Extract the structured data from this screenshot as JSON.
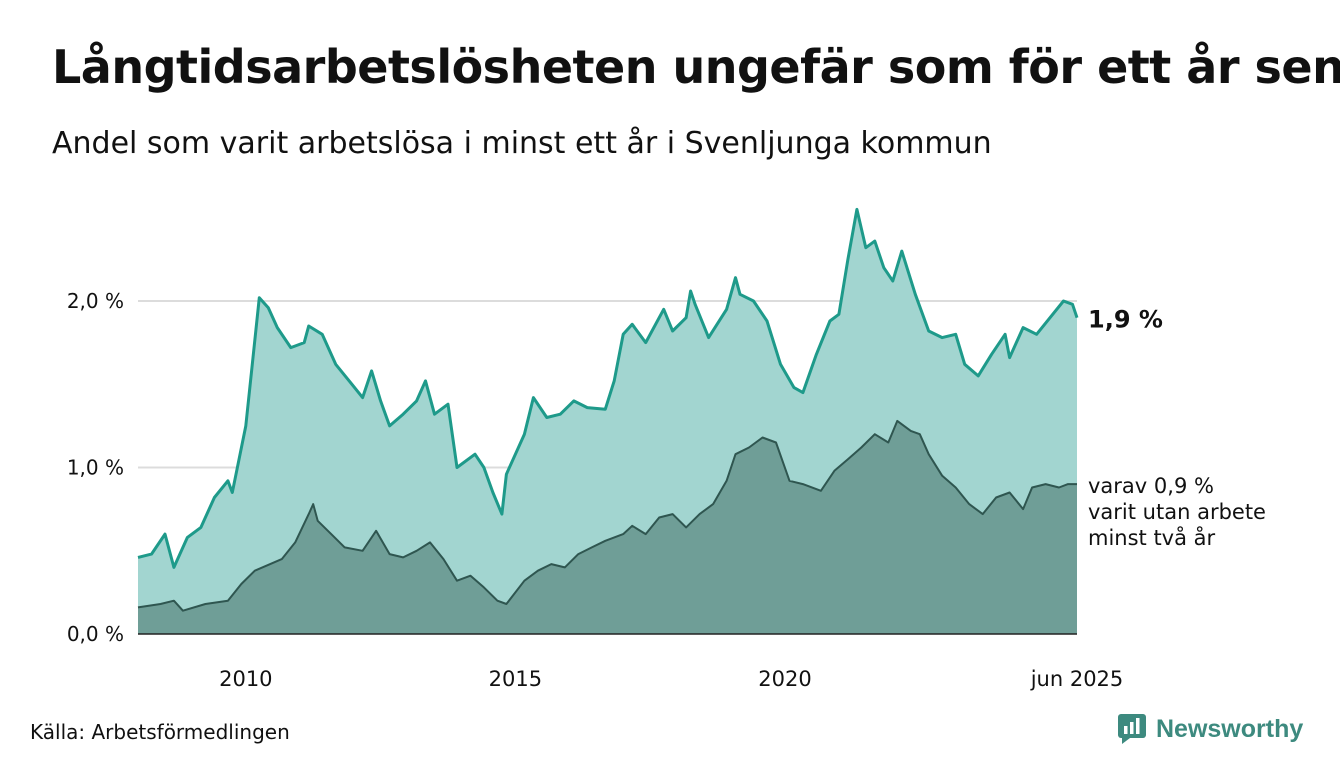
{
  "title": "Långtidsarbetslösheten ungefär som för ett år sen",
  "subtitle": "Andel som varit arbetslösa i minst ett år i Svenljunga kommun",
  "source": "Källa: Arbetsförmedlingen",
  "brand": {
    "name": "Newsworthy",
    "icon": "newsworthy-logo-icon"
  },
  "colors": {
    "total_line": "#1e9a8a",
    "total_fill": "#a2d5d0",
    "sub_fill": "#6f9e97",
    "sub_line": "#2f5650",
    "grid": "#dcdcdc"
  },
  "chart_data": {
    "type": "area",
    "title": "Långtidsarbetslösheten ungefär som för ett år sen",
    "subtitle": "Andel som varit arbetslösa i minst ett år i Svenljunga kommun",
    "x_start": "2008-01",
    "x_end": "2025-06",
    "x_ticks": [
      {
        "date": "2010-01",
        "label": "2010"
      },
      {
        "date": "2015-01",
        "label": "2015"
      },
      {
        "date": "2020-01",
        "label": "2020"
      },
      {
        "date": "2025-06",
        "label": "jun 2025"
      }
    ],
    "y_ticks": [
      {
        "value": 0,
        "label": "0,0 %"
      },
      {
        "value": 1,
        "label": "1,0 %"
      },
      {
        "value": 2,
        "label": "2,0 %"
      }
    ],
    "ylim": [
      0,
      2.6
    ],
    "grid": true,
    "series": [
      {
        "key": "total",
        "end_label": "1,9 %",
        "points": [
          [
            "2008-01",
            0.46
          ],
          [
            "2008-04",
            0.48
          ],
          [
            "2008-07",
            0.6
          ],
          [
            "2008-09",
            0.4
          ],
          [
            "2008-12",
            0.58
          ],
          [
            "2009-03",
            0.64
          ],
          [
            "2009-06",
            0.82
          ],
          [
            "2009-09",
            0.92
          ],
          [
            "2009-10",
            0.85
          ],
          [
            "2010-01",
            1.25
          ],
          [
            "2010-04",
            2.02
          ],
          [
            "2010-06",
            1.96
          ],
          [
            "2010-08",
            1.84
          ],
          [
            "2010-11",
            1.72
          ],
          [
            "2011-02",
            1.75
          ],
          [
            "2011-03",
            1.85
          ],
          [
            "2011-06",
            1.8
          ],
          [
            "2011-09",
            1.62
          ],
          [
            "2011-12",
            1.52
          ],
          [
            "2012-03",
            1.42
          ],
          [
            "2012-05",
            1.58
          ],
          [
            "2012-07",
            1.4
          ],
          [
            "2012-09",
            1.25
          ],
          [
            "2012-12",
            1.32
          ],
          [
            "2013-03",
            1.4
          ],
          [
            "2013-05",
            1.52
          ],
          [
            "2013-07",
            1.32
          ],
          [
            "2013-10",
            1.38
          ],
          [
            "2013-12",
            1.0
          ],
          [
            "2014-04",
            1.08
          ],
          [
            "2014-06",
            1.0
          ],
          [
            "2014-08",
            0.85
          ],
          [
            "2014-10",
            0.72
          ],
          [
            "2014-11",
            0.96
          ],
          [
            "2015-03",
            1.2
          ],
          [
            "2015-05",
            1.42
          ],
          [
            "2015-08",
            1.3
          ],
          [
            "2015-11",
            1.32
          ],
          [
            "2016-02",
            1.4
          ],
          [
            "2016-05",
            1.36
          ],
          [
            "2016-09",
            1.35
          ],
          [
            "2016-11",
            1.52
          ],
          [
            "2017-01",
            1.8
          ],
          [
            "2017-03",
            1.86
          ],
          [
            "2017-06",
            1.75
          ],
          [
            "2017-10",
            1.95
          ],
          [
            "2017-12",
            1.82
          ],
          [
            "2018-03",
            1.9
          ],
          [
            "2018-04",
            2.06
          ],
          [
            "2018-05",
            1.98
          ],
          [
            "2018-08",
            1.78
          ],
          [
            "2018-12",
            1.95
          ],
          [
            "2019-02",
            2.14
          ],
          [
            "2019-03",
            2.04
          ],
          [
            "2019-06",
            2.0
          ],
          [
            "2019-09",
            1.88
          ],
          [
            "2019-12",
            1.62
          ],
          [
            "2020-03",
            1.48
          ],
          [
            "2020-05",
            1.45
          ],
          [
            "2020-08",
            1.68
          ],
          [
            "2020-11",
            1.88
          ],
          [
            "2021-01",
            1.92
          ],
          [
            "2021-03",
            2.25
          ],
          [
            "2021-05",
            2.55
          ],
          [
            "2021-07",
            2.32
          ],
          [
            "2021-09",
            2.36
          ],
          [
            "2021-11",
            2.2
          ],
          [
            "2022-01",
            2.12
          ],
          [
            "2022-03",
            2.3
          ],
          [
            "2022-06",
            2.04
          ],
          [
            "2022-09",
            1.82
          ],
          [
            "2022-12",
            1.78
          ],
          [
            "2023-03",
            1.8
          ],
          [
            "2023-05",
            1.62
          ],
          [
            "2023-08",
            1.55
          ],
          [
            "2023-11",
            1.68
          ],
          [
            "2024-02",
            1.8
          ],
          [
            "2024-03",
            1.66
          ],
          [
            "2024-06",
            1.84
          ],
          [
            "2024-09",
            1.8
          ],
          [
            "2024-12",
            1.9
          ],
          [
            "2025-03",
            2.0
          ],
          [
            "2025-05",
            1.98
          ],
          [
            "2025-06",
            1.9
          ]
        ]
      },
      {
        "key": "sub",
        "label_lines": [
          "varav 0,9 %",
          "varit utan arbete",
          "minst två år"
        ],
        "points": [
          [
            "2008-01",
            0.16
          ],
          [
            "2008-06",
            0.18
          ],
          [
            "2008-09",
            0.2
          ],
          [
            "2008-11",
            0.14
          ],
          [
            "2009-04",
            0.18
          ],
          [
            "2009-09",
            0.2
          ],
          [
            "2009-12",
            0.3
          ],
          [
            "2010-03",
            0.38
          ],
          [
            "2010-09",
            0.45
          ],
          [
            "2010-12",
            0.55
          ],
          [
            "2011-03",
            0.72
          ],
          [
            "2011-04",
            0.78
          ],
          [
            "2011-05",
            0.68
          ],
          [
            "2011-08",
            0.6
          ],
          [
            "2011-11",
            0.52
          ],
          [
            "2012-03",
            0.5
          ],
          [
            "2012-06",
            0.62
          ],
          [
            "2012-09",
            0.48
          ],
          [
            "2012-12",
            0.46
          ],
          [
            "2013-03",
            0.5
          ],
          [
            "2013-06",
            0.55
          ],
          [
            "2013-09",
            0.45
          ],
          [
            "2013-12",
            0.32
          ],
          [
            "2014-03",
            0.35
          ],
          [
            "2014-06",
            0.28
          ],
          [
            "2014-09",
            0.2
          ],
          [
            "2014-11",
            0.18
          ],
          [
            "2015-03",
            0.32
          ],
          [
            "2015-06",
            0.38
          ],
          [
            "2015-09",
            0.42
          ],
          [
            "2015-12",
            0.4
          ],
          [
            "2016-03",
            0.48
          ],
          [
            "2016-06",
            0.52
          ],
          [
            "2016-09",
            0.56
          ],
          [
            "2017-01",
            0.6
          ],
          [
            "2017-03",
            0.65
          ],
          [
            "2017-06",
            0.6
          ],
          [
            "2017-09",
            0.7
          ],
          [
            "2017-12",
            0.72
          ],
          [
            "2018-03",
            0.64
          ],
          [
            "2018-06",
            0.72
          ],
          [
            "2018-09",
            0.78
          ],
          [
            "2018-12",
            0.92
          ],
          [
            "2019-02",
            1.08
          ],
          [
            "2019-05",
            1.12
          ],
          [
            "2019-08",
            1.18
          ],
          [
            "2019-11",
            1.15
          ],
          [
            "2020-02",
            0.92
          ],
          [
            "2020-05",
            0.9
          ],
          [
            "2020-09",
            0.86
          ],
          [
            "2020-12",
            0.98
          ],
          [
            "2021-03",
            1.05
          ],
          [
            "2021-06",
            1.12
          ],
          [
            "2021-09",
            1.2
          ],
          [
            "2021-12",
            1.15
          ],
          [
            "2022-02",
            1.28
          ],
          [
            "2022-05",
            1.22
          ],
          [
            "2022-07",
            1.2
          ],
          [
            "2022-09",
            1.08
          ],
          [
            "2022-12",
            0.95
          ],
          [
            "2023-03",
            0.88
          ],
          [
            "2023-06",
            0.78
          ],
          [
            "2023-09",
            0.72
          ],
          [
            "2023-12",
            0.82
          ],
          [
            "2024-03",
            0.85
          ],
          [
            "2024-06",
            0.75
          ],
          [
            "2024-08",
            0.88
          ],
          [
            "2024-11",
            0.9
          ],
          [
            "2025-02",
            0.88
          ],
          [
            "2025-04",
            0.9
          ],
          [
            "2025-06",
            0.9
          ]
        ]
      }
    ]
  }
}
